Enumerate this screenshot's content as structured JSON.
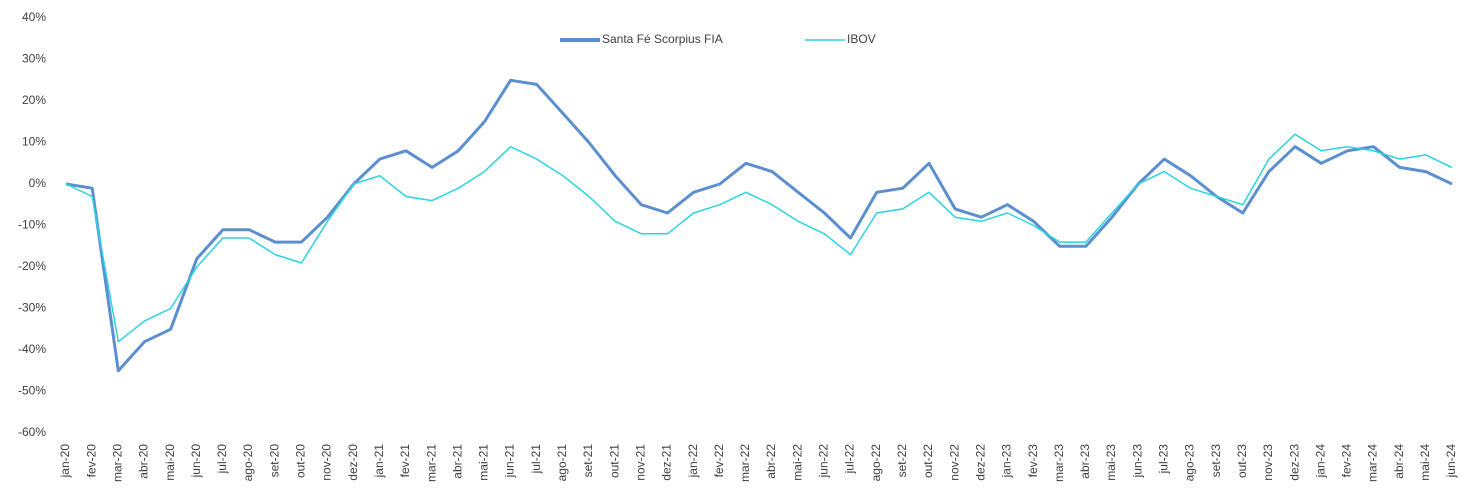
{
  "chart_data": {
    "type": "line",
    "categories": [
      "jan-20",
      "fev-20",
      "mar-20",
      "abr-20",
      "mai-20",
      "jun-20",
      "jul-20",
      "ago-20",
      "set-20",
      "out-20",
      "nov-20",
      "dez-20",
      "jan-21",
      "fev-21",
      "mar-21",
      "abr-21",
      "mai-21",
      "jun-21",
      "jul-21",
      "ago-21",
      "set-21",
      "out-21",
      "nov-21",
      "dez-21",
      "jan-22",
      "fev-22",
      "mar-22",
      "abr-22",
      "mai-22",
      "jun-22",
      "jul-22",
      "ago-22",
      "set-22",
      "out-22",
      "nov-22",
      "dez-22",
      "jan-23",
      "fev-23",
      "mar-23",
      "abr-23",
      "mai-23",
      "jun-23",
      "jul-23",
      "ago-23",
      "set-23",
      "out-23",
      "nov-23",
      "dez-23",
      "jan-24",
      "fev-24",
      "mar-24",
      "abr-24",
      "mai-24",
      "jun-24"
    ],
    "series": [
      {
        "name": "Santa Fé Scorpius FIA",
        "color": "#5b8fd0",
        "values": [
          0,
          -1,
          -45,
          -38,
          -35,
          -18,
          -11,
          -11,
          -14,
          -14,
          -8,
          0,
          6,
          8,
          4,
          8,
          15,
          25,
          24,
          17,
          10,
          2,
          -5,
          -7,
          -2,
          0,
          5,
          3,
          -2,
          -7,
          -13,
          -2,
          -1,
          5,
          -6,
          -8,
          -5,
          -9,
          -15,
          -15,
          -8,
          0,
          6,
          2,
          -3,
          -7,
          3,
          9,
          5,
          8,
          9,
          4,
          3,
          0
        ]
      },
      {
        "name": "IBOV",
        "color": "#2ad4e0",
        "values": [
          0,
          -3,
          -38,
          -33,
          -30,
          -20,
          -13,
          -13,
          -17,
          -19,
          -9,
          0,
          2,
          -3,
          -4,
          -1,
          3,
          9,
          6,
          2,
          -3,
          -9,
          -12,
          -12,
          -7,
          -5,
          -2,
          -5,
          -9,
          -12,
          -17,
          -7,
          -6,
          -2,
          -8,
          -9,
          -7,
          -10,
          -14,
          -14,
          -7,
          0,
          3,
          -1,
          -3,
          -5,
          6,
          12,
          8,
          9,
          8,
          6,
          7,
          4
        ]
      }
    ],
    "ylim": [
      -60,
      40
    ],
    "yticks": [
      {
        "value": -60,
        "label": "-60%"
      },
      {
        "value": -50,
        "label": "-50%"
      },
      {
        "value": -40,
        "label": "-40%"
      },
      {
        "value": -30,
        "label": "-30%"
      },
      {
        "value": -20,
        "label": "-20%"
      },
      {
        "value": -10,
        "label": "-10%"
      },
      {
        "value": 0,
        "label": "0%"
      },
      {
        "value": 10,
        "label": "10%"
      },
      {
        "value": 20,
        "label": "20%"
      },
      {
        "value": 30,
        "label": "30%"
      },
      {
        "value": 40,
        "label": "40%"
      }
    ],
    "grid": false
  }
}
